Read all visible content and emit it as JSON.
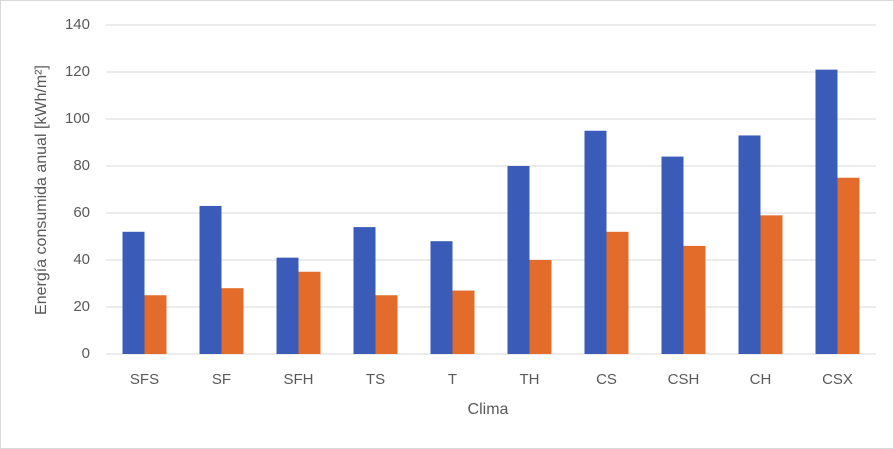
{
  "chart_data": {
    "type": "bar",
    "categories": [
      "SFS",
      "SF",
      "SFH",
      "TS",
      "T",
      "TH",
      "CS",
      "CSH",
      "CH",
      "CSX"
    ],
    "series": [
      {
        "color": "#3a5bb8",
        "values": [
          52,
          63,
          41,
          54,
          48,
          80,
          95,
          84,
          93,
          121
        ]
      },
      {
        "color": "#e36c2a",
        "values": [
          25,
          28,
          35,
          25,
          27,
          40,
          52,
          46,
          59,
          75
        ]
      }
    ],
    "ylim": [
      0,
      140
    ],
    "yticks": [
      0,
      20,
      40,
      60,
      80,
      100,
      120,
      140
    ],
    "grid": true,
    "x_label": "Clima",
    "y_label": "Energía consumida anual [kWh/m²]"
  }
}
